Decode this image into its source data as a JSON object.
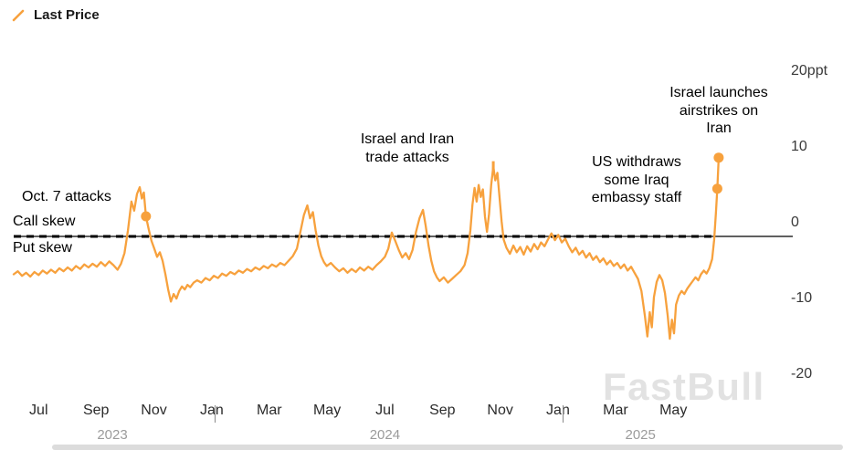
{
  "legend": {
    "label": "Last Price",
    "color": "#f7a13d"
  },
  "watermark": "FastBull",
  "chart_data": {
    "type": "line",
    "title": "",
    "unit": "ppt",
    "ylim": [
      -20,
      20
    ],
    "grid": "off",
    "legend_position": "top-left",
    "yticks": [
      {
        "value": 20,
        "label": "20ppt"
      },
      {
        "value": 10,
        "label": "10"
      },
      {
        "value": 0,
        "label": "0"
      },
      {
        "value": -10,
        "label": "-10"
      },
      {
        "value": -20,
        "label": "-20"
      }
    ],
    "xticks": [
      {
        "value": 2023.542,
        "label": "Jul"
      },
      {
        "value": 2023.708,
        "label": "Sep"
      },
      {
        "value": 2023.875,
        "label": "Nov"
      },
      {
        "value": 2024.042,
        "label": "Jan"
      },
      {
        "value": 2024.208,
        "label": "Mar"
      },
      {
        "value": 2024.375,
        "label": "May"
      },
      {
        "value": 2024.542,
        "label": "Jul"
      },
      {
        "value": 2024.708,
        "label": "Sep"
      },
      {
        "value": 2024.875,
        "label": "Nov"
      },
      {
        "value": 2025.042,
        "label": "Jan"
      },
      {
        "value": 2025.208,
        "label": "Mar"
      },
      {
        "value": 2025.375,
        "label": "May"
      }
    ],
    "year_ticks": [
      {
        "x": 2023.755,
        "label": "2023"
      },
      {
        "x": 2024.542,
        "label": "2024"
      },
      {
        "x": 2025.28,
        "label": "2025"
      }
    ],
    "year_dividers": [
      2024.05,
      2025.055
    ],
    "zero_reference": {
      "style": "dashed",
      "value": 0,
      "label_above": "Call skew",
      "label_below": "Put skew"
    },
    "series": [
      {
        "name": "Last Price",
        "color": "#f7a13d",
        "points": [
          [
            2023.47,
            -5.0
          ],
          [
            2023.482,
            -4.6
          ],
          [
            2023.494,
            -5.2
          ],
          [
            2023.506,
            -4.8
          ],
          [
            2023.518,
            -5.3
          ],
          [
            2023.53,
            -4.7
          ],
          [
            2023.542,
            -5.1
          ],
          [
            2023.554,
            -4.5
          ],
          [
            2023.566,
            -4.9
          ],
          [
            2023.578,
            -4.4
          ],
          [
            2023.59,
            -4.8
          ],
          [
            2023.602,
            -4.2
          ],
          [
            2023.614,
            -4.6
          ],
          [
            2023.626,
            -4.1
          ],
          [
            2023.638,
            -4.5
          ],
          [
            2023.65,
            -3.9
          ],
          [
            2023.662,
            -4.3
          ],
          [
            2023.674,
            -3.7
          ],
          [
            2023.686,
            -4.1
          ],
          [
            2023.698,
            -3.6
          ],
          [
            2023.71,
            -4.0
          ],
          [
            2023.722,
            -3.4
          ],
          [
            2023.734,
            -3.9
          ],
          [
            2023.746,
            -3.3
          ],
          [
            2023.758,
            -3.8
          ],
          [
            2023.77,
            -4.4
          ],
          [
            2023.78,
            -3.6
          ],
          [
            2023.79,
            -2.2
          ],
          [
            2023.8,
            0.8
          ],
          [
            2023.81,
            4.6
          ],
          [
            2023.818,
            3.4
          ],
          [
            2023.826,
            5.6
          ],
          [
            2023.834,
            6.5
          ],
          [
            2023.84,
            5.0
          ],
          [
            2023.846,
            5.8
          ],
          [
            2023.852,
            2.65
          ],
          [
            2023.86,
            0.9
          ],
          [
            2023.868,
            -0.6
          ],
          [
            2023.876,
            -1.6
          ],
          [
            2023.884,
            -2.7
          ],
          [
            2023.892,
            -2.1
          ],
          [
            2023.9,
            -3.2
          ],
          [
            2023.908,
            -5.0
          ],
          [
            2023.916,
            -7.0
          ],
          [
            2023.924,
            -8.6
          ],
          [
            2023.932,
            -7.6
          ],
          [
            2023.94,
            -8.2
          ],
          [
            2023.948,
            -7.2
          ],
          [
            2023.956,
            -6.6
          ],
          [
            2023.964,
            -7.0
          ],
          [
            2023.972,
            -6.4
          ],
          [
            2023.98,
            -6.7
          ],
          [
            2023.99,
            -6.1
          ],
          [
            2024.0,
            -5.8
          ],
          [
            2024.012,
            -6.1
          ],
          [
            2024.024,
            -5.5
          ],
          [
            2024.036,
            -5.8
          ],
          [
            2024.048,
            -5.2
          ],
          [
            2024.06,
            -5.5
          ],
          [
            2024.072,
            -4.9
          ],
          [
            2024.084,
            -5.2
          ],
          [
            2024.096,
            -4.7
          ],
          [
            2024.108,
            -5.0
          ],
          [
            2024.12,
            -4.5
          ],
          [
            2024.132,
            -4.8
          ],
          [
            2024.144,
            -4.3
          ],
          [
            2024.156,
            -4.6
          ],
          [
            2024.168,
            -4.1
          ],
          [
            2024.18,
            -4.4
          ],
          [
            2024.192,
            -3.9
          ],
          [
            2024.204,
            -4.2
          ],
          [
            2024.216,
            -3.7
          ],
          [
            2024.228,
            -4.0
          ],
          [
            2024.24,
            -3.5
          ],
          [
            2024.252,
            -3.8
          ],
          [
            2024.264,
            -3.2
          ],
          [
            2024.276,
            -2.6
          ],
          [
            2024.288,
            -1.6
          ],
          [
            2024.298,
            0.6
          ],
          [
            2024.308,
            2.8
          ],
          [
            2024.318,
            4.1
          ],
          [
            2024.326,
            2.4
          ],
          [
            2024.334,
            3.2
          ],
          [
            2024.342,
            0.8
          ],
          [
            2024.35,
            -1.2
          ],
          [
            2024.358,
            -2.6
          ],
          [
            2024.366,
            -3.4
          ],
          [
            2024.374,
            -3.9
          ],
          [
            2024.386,
            -3.5
          ],
          [
            2024.398,
            -4.1
          ],
          [
            2024.41,
            -4.6
          ],
          [
            2024.422,
            -4.2
          ],
          [
            2024.434,
            -4.8
          ],
          [
            2024.446,
            -4.3
          ],
          [
            2024.458,
            -4.7
          ],
          [
            2024.47,
            -4.1
          ],
          [
            2024.482,
            -4.5
          ],
          [
            2024.494,
            -4.0
          ],
          [
            2024.506,
            -4.4
          ],
          [
            2024.518,
            -3.8
          ],
          [
            2024.53,
            -3.3
          ],
          [
            2024.542,
            -2.7
          ],
          [
            2024.552,
            -1.6
          ],
          [
            2024.562,
            0.5
          ],
          [
            2024.572,
            -0.6
          ],
          [
            2024.582,
            -1.8
          ],
          [
            2024.592,
            -2.8
          ],
          [
            2024.602,
            -2.2
          ],
          [
            2024.612,
            -3.0
          ],
          [
            2024.622,
            -1.8
          ],
          [
            2024.632,
            0.6
          ],
          [
            2024.642,
            2.4
          ],
          [
            2024.652,
            3.5
          ],
          [
            2024.66,
            1.4
          ],
          [
            2024.668,
            -1.2
          ],
          [
            2024.676,
            -3.2
          ],
          [
            2024.684,
            -4.6
          ],
          [
            2024.692,
            -5.4
          ],
          [
            2024.7,
            -5.9
          ],
          [
            2024.712,
            -5.4
          ],
          [
            2024.724,
            -6.1
          ],
          [
            2024.736,
            -5.6
          ],
          [
            2024.748,
            -5.1
          ],
          [
            2024.76,
            -4.6
          ],
          [
            2024.772,
            -3.8
          ],
          [
            2024.781,
            -2.2
          ],
          [
            2024.789,
            0.8
          ],
          [
            2024.795,
            4.2
          ],
          [
            2024.801,
            6.4
          ],
          [
            2024.807,
            4.6
          ],
          [
            2024.813,
            6.8
          ],
          [
            2024.819,
            5.2
          ],
          [
            2024.825,
            6.2
          ],
          [
            2024.831,
            2.6
          ],
          [
            2024.837,
            0.6
          ],
          [
            2024.843,
            3.0
          ],
          [
            2024.849,
            6.8
          ],
          [
            2024.855,
            9.2
          ],
          [
            2024.861,
            7.4
          ],
          [
            2024.867,
            8.4
          ],
          [
            2024.873,
            5.2
          ],
          [
            2024.879,
            2.0
          ],
          [
            2024.885,
            -0.4
          ],
          [
            2024.893,
            -1.5
          ],
          [
            2024.903,
            -2.3
          ],
          [
            2024.913,
            -1.2
          ],
          [
            2024.923,
            -2.1
          ],
          [
            2024.933,
            -1.4
          ],
          [
            2024.943,
            -2.4
          ],
          [
            2024.953,
            -1.3
          ],
          [
            2024.963,
            -2.0
          ],
          [
            2024.973,
            -1.0
          ],
          [
            2024.983,
            -1.7
          ],
          [
            2024.993,
            -0.8
          ],
          [
            2025.003,
            -1.3
          ],
          [
            2025.013,
            -0.4
          ],
          [
            2025.023,
            0.4
          ],
          [
            2025.033,
            -0.5
          ],
          [
            2025.043,
            0.2
          ],
          [
            2025.053,
            -0.8
          ],
          [
            2025.063,
            -0.3
          ],
          [
            2025.073,
            -1.3
          ],
          [
            2025.083,
            -2.1
          ],
          [
            2025.093,
            -1.5
          ],
          [
            2025.103,
            -2.4
          ],
          [
            2025.113,
            -1.9
          ],
          [
            2025.123,
            -2.8
          ],
          [
            2025.133,
            -2.2
          ],
          [
            2025.143,
            -3.1
          ],
          [
            2025.153,
            -2.6
          ],
          [
            2025.163,
            -3.4
          ],
          [
            2025.173,
            -2.9
          ],
          [
            2025.183,
            -3.7
          ],
          [
            2025.193,
            -3.2
          ],
          [
            2025.203,
            -3.9
          ],
          [
            2025.213,
            -3.5
          ],
          [
            2025.223,
            -4.2
          ],
          [
            2025.233,
            -3.7
          ],
          [
            2025.243,
            -4.5
          ],
          [
            2025.253,
            -4.0
          ],
          [
            2025.263,
            -4.8
          ],
          [
            2025.273,
            -5.6
          ],
          [
            2025.283,
            -7.2
          ],
          [
            2025.293,
            -10.5
          ],
          [
            2025.3,
            -13.2
          ],
          [
            2025.307,
            -10.0
          ],
          [
            2025.313,
            -12.0
          ],
          [
            2025.319,
            -8.0
          ],
          [
            2025.327,
            -6.0
          ],
          [
            2025.335,
            -5.1
          ],
          [
            2025.343,
            -5.8
          ],
          [
            2025.351,
            -7.5
          ],
          [
            2025.359,
            -10.5
          ],
          [
            2025.365,
            -13.5
          ],
          [
            2025.371,
            -11.0
          ],
          [
            2025.377,
            -12.8
          ],
          [
            2025.383,
            -9.0
          ],
          [
            2025.391,
            -7.8
          ],
          [
            2025.399,
            -7.2
          ],
          [
            2025.407,
            -7.6
          ],
          [
            2025.415,
            -6.9
          ],
          [
            2025.423,
            -6.4
          ],
          [
            2025.431,
            -5.9
          ],
          [
            2025.439,
            -5.4
          ],
          [
            2025.447,
            -5.8
          ],
          [
            2025.455,
            -5.0
          ],
          [
            2025.463,
            -4.5
          ],
          [
            2025.471,
            -4.9
          ],
          [
            2025.479,
            -4.2
          ],
          [
            2025.487,
            -3.0
          ],
          [
            2025.493,
            -0.5
          ],
          [
            2025.498,
            3.0
          ],
          [
            2025.502,
            6.3
          ],
          [
            2025.506,
            10.4
          ]
        ]
      }
    ],
    "markers": [
      {
        "x": 2023.852,
        "y": 2.65,
        "shape": "dot",
        "event": "Oct. 7 attacks"
      },
      {
        "x": 2024.855,
        "y": 9.2,
        "shape": "dash",
        "event": "Israel and Iran trade attacks"
      },
      {
        "x": 2025.502,
        "y": 6.3,
        "shape": "dot",
        "event": "US withdraws some Iraq embassy staff"
      },
      {
        "x": 2025.506,
        "y": 10.4,
        "shape": "dot",
        "event": "Israel launches airstrikes on Iran"
      }
    ],
    "annotations": [
      {
        "id": "oct7",
        "text": "Oct. 7 attacks"
      },
      {
        "id": "call-skew",
        "text": "Call skew"
      },
      {
        "id": "put-skew",
        "text": "Put skew"
      },
      {
        "id": "trade-attacks",
        "text": "Israel and Iran\ntrade attacks"
      },
      {
        "id": "us-withdraws",
        "text": "US withdraws\nsome Iraq\nembassy staff"
      },
      {
        "id": "israel-airstrikes",
        "text": "Israel launches\nairstrikes on\nIran"
      }
    ]
  }
}
